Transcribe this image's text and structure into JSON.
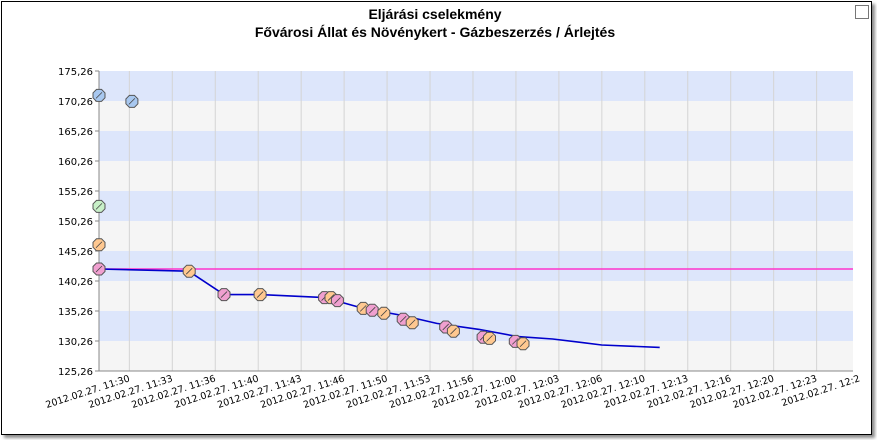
{
  "chart_data": {
    "type": "line",
    "title": "Eljárási cselekmény",
    "subtitle": "Fővárosi Állat és Növénykert - Gázbeszerzés / Árlejtés",
    "xlabel": "",
    "ylabel": "",
    "ylim": [
      125.26,
      175.26
    ],
    "y_ticks": [
      "125,26",
      "130,26",
      "135,26",
      "140,26",
      "145,26",
      "150,26",
      "155,26",
      "160,26",
      "165,26",
      "170,26",
      "175,26"
    ],
    "x_ticks": [
      "2012.02.27. 11:30",
      "2012.02.27. 11:33",
      "2012.02.27. 11:36",
      "2012.02.27. 11:40",
      "2012.02.27. 11:43",
      "2012.02.27. 11:46",
      "2012.02.27. 11:50",
      "2012.02.27. 11:53",
      "2012.02.27. 11:56",
      "2012.02.27. 12:00",
      "2012.02.27. 12:03",
      "2012.02.27. 12:06",
      "2012.02.27. 12:10",
      "2012.02.27. 12:13",
      "2012.02.27. 12:16",
      "2012.02.27. 12:20",
      "2012.02.27. 12:23",
      "2012.02.27. 12:2"
    ],
    "xlim_minutes": [
      0,
      58.5
    ],
    "reference_line": {
      "value": 142.26,
      "color": "#ff33cc"
    },
    "series": [
      {
        "role": "best-price-line",
        "color": "#0000cc",
        "points": [
          [
            0,
            142.26
          ],
          [
            6.96,
            141.9
          ],
          [
            9.7,
            138.0
          ],
          [
            12.5,
            138.0
          ],
          [
            17.5,
            137.5
          ],
          [
            20.5,
            135.7
          ],
          [
            23.6,
            134.5
          ],
          [
            26.2,
            133.2
          ],
          [
            29.5,
            132.2
          ],
          [
            32.5,
            131.0
          ],
          [
            35.2,
            130.6
          ],
          [
            37.5,
            130.0
          ],
          [
            39,
            129.6
          ],
          [
            43.5,
            129.2
          ]
        ]
      }
    ],
    "markers": [
      {
        "x": 0,
        "y": 171.2,
        "color": "#a8c8f0"
      },
      {
        "x": 2.55,
        "y": 170.2,
        "color": "#a8c8f0"
      },
      {
        "x": 0,
        "y": 152.7,
        "color": "#c8f0c8"
      },
      {
        "x": 0,
        "y": 146.3,
        "color": "#ffc890"
      },
      {
        "x": 0,
        "y": 142.26,
        "color": "#f0a0d0"
      },
      {
        "x": 7.0,
        "y": 141.9,
        "color": "#ffc890"
      },
      {
        "x": 9.7,
        "y": 138.0,
        "color": "#f0a0d0"
      },
      {
        "x": 12.5,
        "y": 138.0,
        "color": "#ffc890"
      },
      {
        "x": 17.5,
        "y": 137.5,
        "color": "#f0a0d0"
      },
      {
        "x": 18.0,
        "y": 137.5,
        "color": "#ffc890"
      },
      {
        "x": 18.5,
        "y": 137.0,
        "color": "#f0a0d0"
      },
      {
        "x": 20.5,
        "y": 135.7,
        "color": "#ffc890"
      },
      {
        "x": 21.2,
        "y": 135.4,
        "color": "#f0a0d0"
      },
      {
        "x": 22.1,
        "y": 134.9,
        "color": "#ffc890"
      },
      {
        "x": 23.6,
        "y": 133.9,
        "color": "#f0a0d0"
      },
      {
        "x": 24.3,
        "y": 133.3,
        "color": "#ffc890"
      },
      {
        "x": 26.9,
        "y": 132.6,
        "color": "#f0a0d0"
      },
      {
        "x": 27.5,
        "y": 131.9,
        "color": "#ffc890"
      },
      {
        "x": 29.8,
        "y": 130.9,
        "color": "#f0a0d0"
      },
      {
        "x": 30.3,
        "y": 130.7,
        "color": "#ffc890"
      },
      {
        "x": 32.3,
        "y": 130.2,
        "color": "#f0a0d0"
      },
      {
        "x": 32.9,
        "y": 129.8,
        "color": "#ffc890"
      }
    ],
    "grid": true,
    "legend": "none",
    "band_colors": [
      "#dde6fb",
      "#f5f5f5"
    ]
  }
}
